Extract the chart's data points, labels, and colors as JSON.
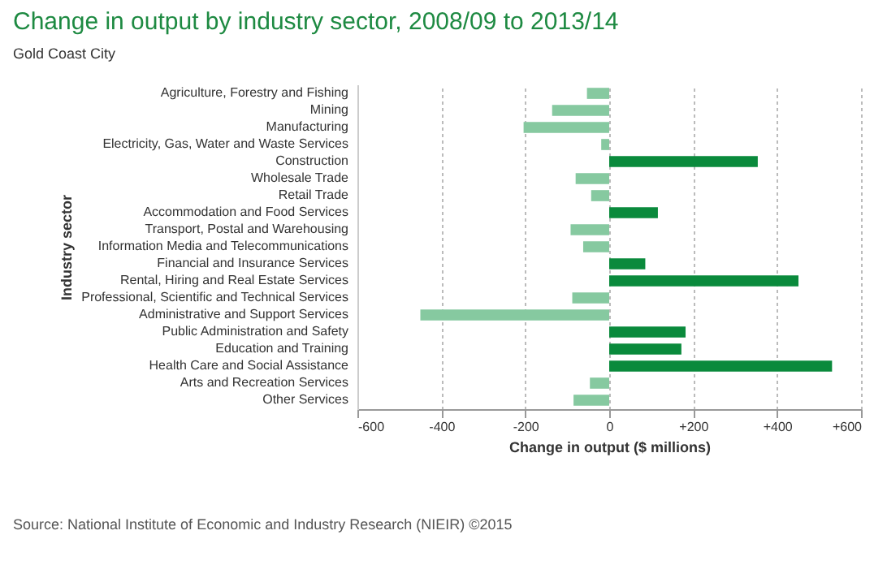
{
  "chart_data": {
    "type": "bar",
    "orientation": "horizontal",
    "title": "Change in output by industry sector, 2008/09 to 2013/14",
    "subtitle": "Gold Coast City",
    "xlabel": "Change in output ($ millions)",
    "ylabel": "Industry sector",
    "categories": [
      "Agriculture, Forestry and Fishing",
      "Mining",
      "Manufacturing",
      "Electricity, Gas, Water and Waste Services",
      "Construction",
      "Wholesale Trade",
      "Retail Trade",
      "Accommodation and Food Services",
      "Transport, Postal and Warehousing",
      "Information Media and Telecommunications",
      "Financial and Insurance Services",
      "Rental, Hiring and Real Estate Services",
      "Professional, Scientific and Technical Services",
      "Administrative and Support Services",
      "Public Administration and Safety",
      "Education and Training",
      "Health Care and Social Assistance",
      "Arts and Recreation Services",
      "Other Services"
    ],
    "values": [
      -53,
      -136,
      -204,
      -19,
      354,
      -80,
      -43,
      116,
      -92,
      -62,
      86,
      451,
      -88,
      -450,
      182,
      172,
      531,
      -46,
      -85
    ],
    "colors": [
      "#86c9a0",
      "#86c9a0",
      "#86c9a0",
      "#86c9a0",
      "#0a8a3c",
      "#86c9a0",
      "#86c9a0",
      "#0a8a3c",
      "#86c9a0",
      "#86c9a0",
      "#0a8a3c",
      "#0a8a3c",
      "#86c9a0",
      "#86c9a0",
      "#0a8a3c",
      "#0a8a3c",
      "#0a8a3c",
      "#86c9a0",
      "#86c9a0"
    ],
    "xlim": [
      -600,
      600
    ],
    "xticks": [
      -600,
      -400,
      -200,
      0,
      {
        "value": 200,
        "label": "+200"
      },
      {
        "value": 400,
        "label": "+400"
      },
      {
        "value": 600,
        "label": "+600"
      }
    ],
    "grid": "x",
    "annotations": [
      "Source: National Institute of Economic and Industry Research (NIEIR) ©2015"
    ]
  }
}
